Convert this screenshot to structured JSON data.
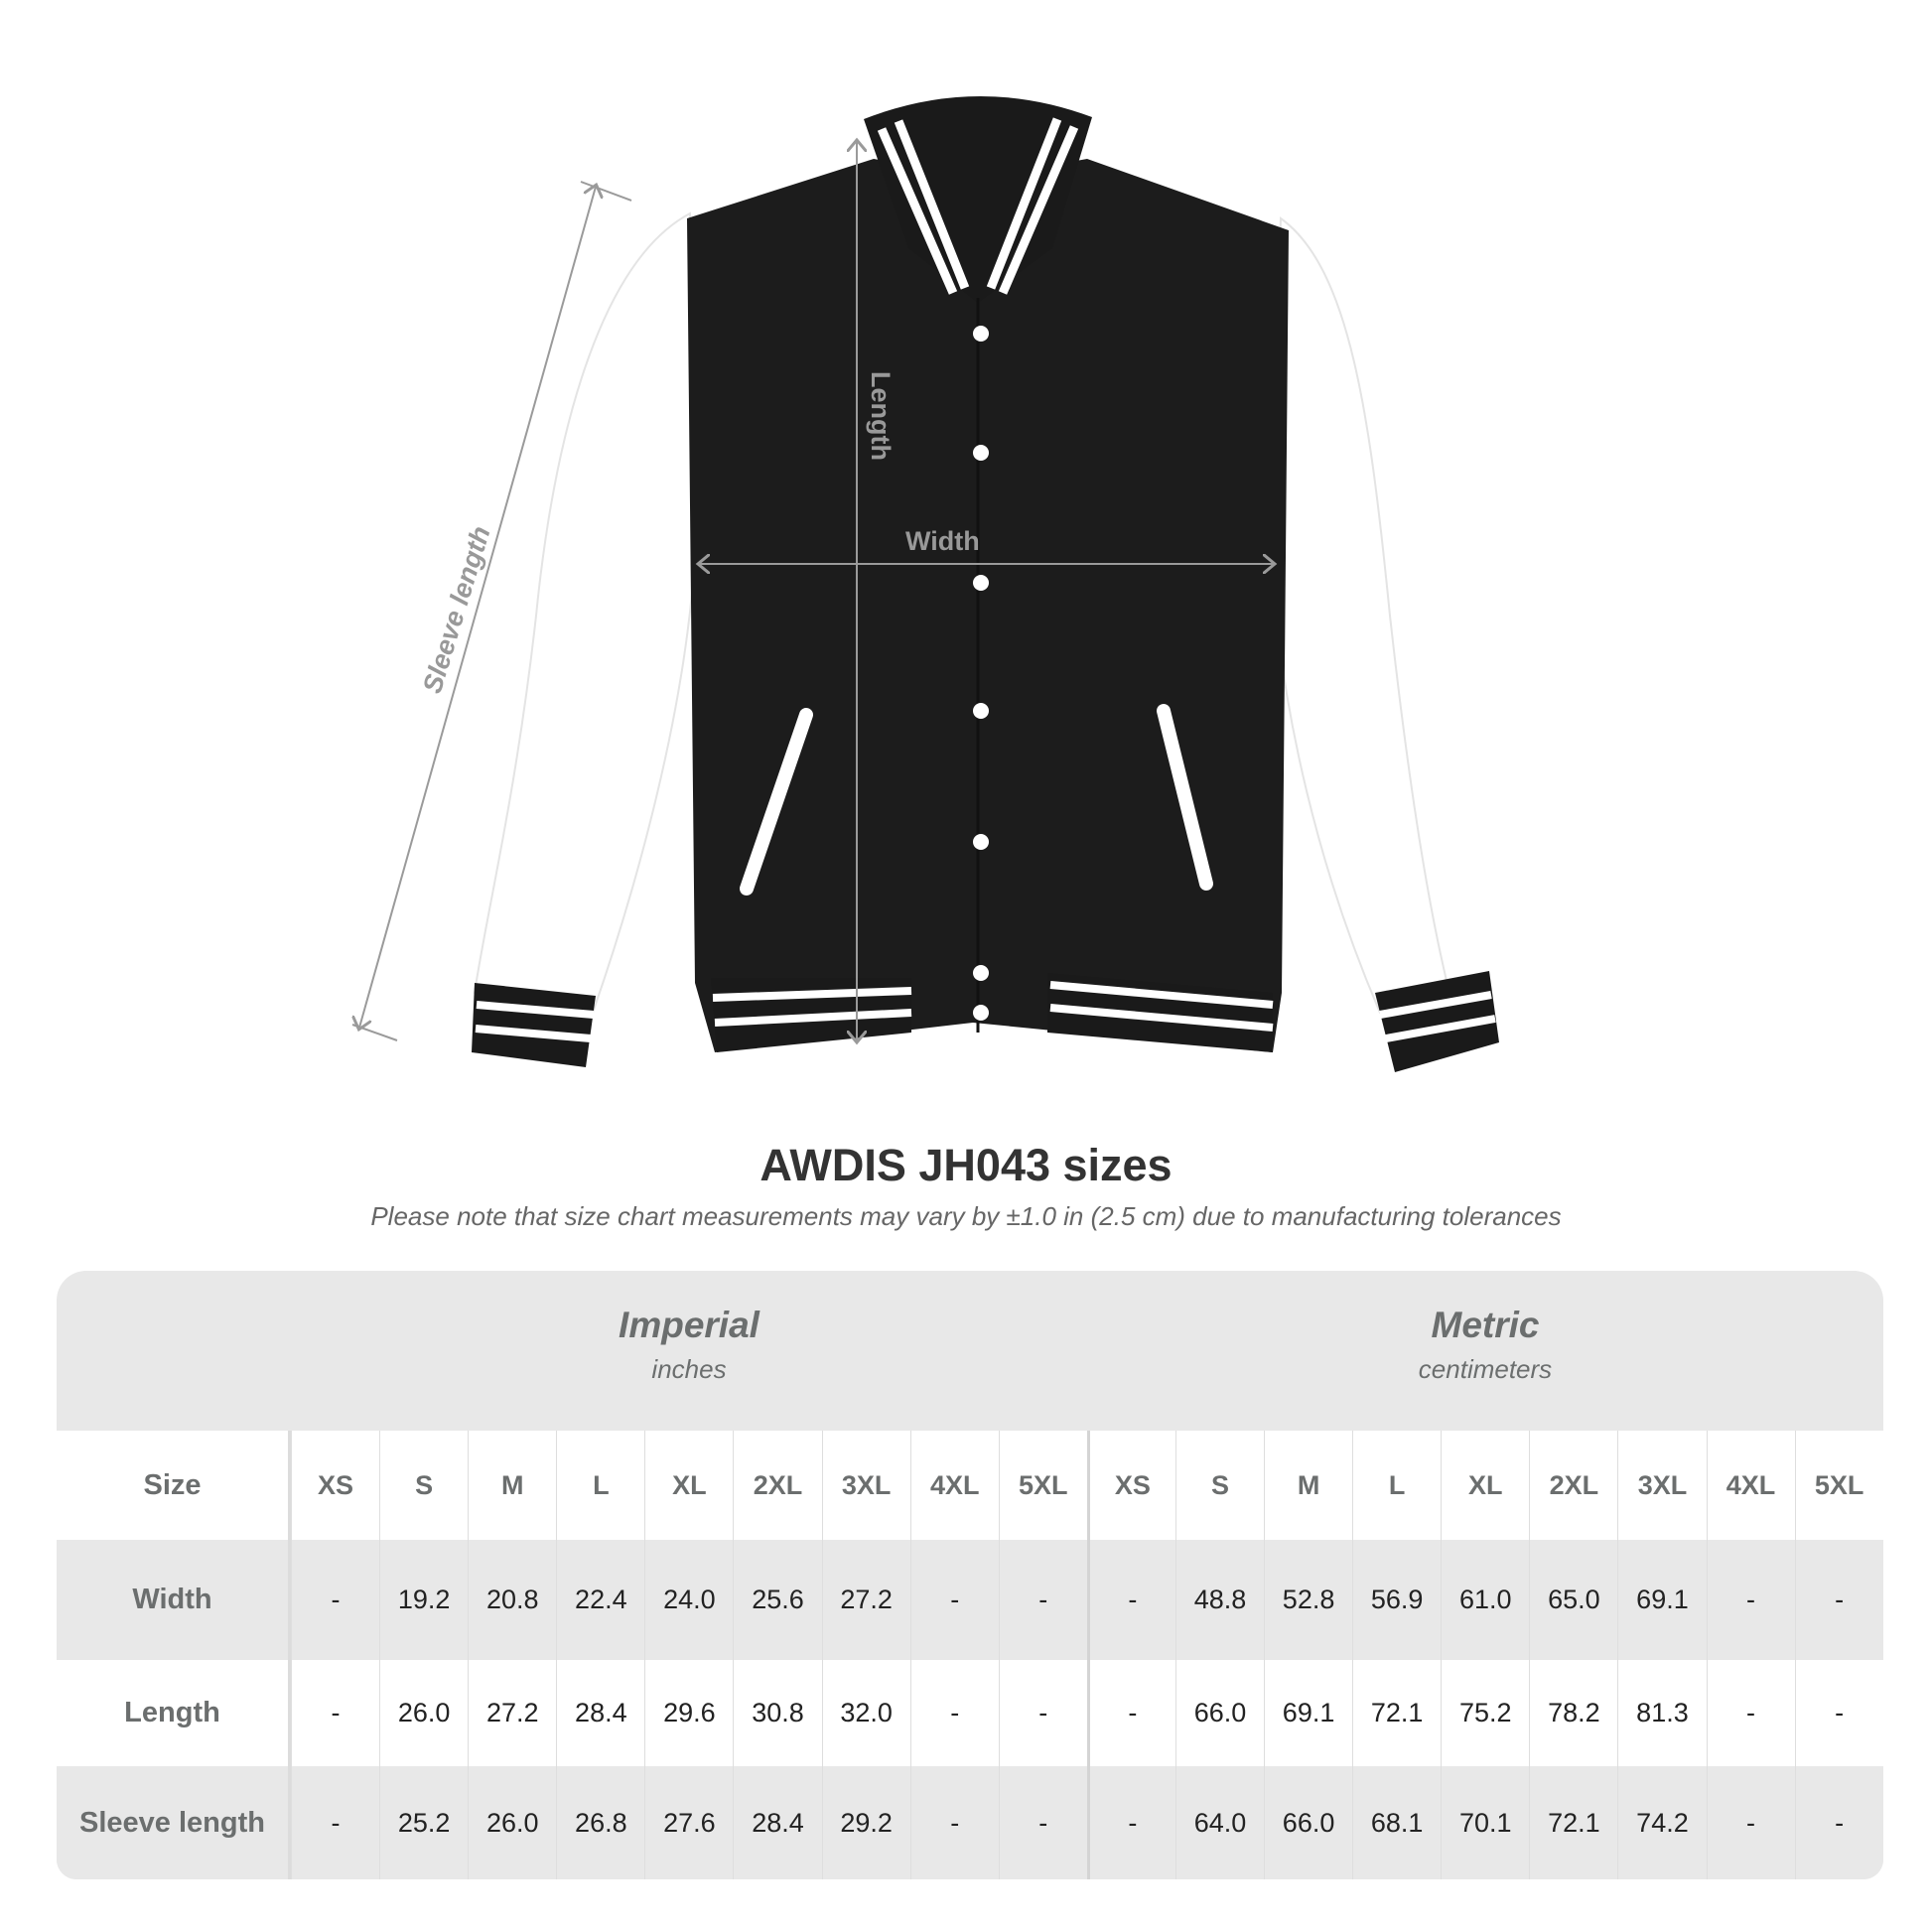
{
  "diagram": {
    "labels": {
      "length": "Length",
      "width": "Width",
      "sleeve": "Sleeve length"
    },
    "colors": {
      "body": "#1c1c1c",
      "sleeves": "#ffffff",
      "stripes": "#ffffff",
      "measure_line": "#9a9a9a"
    }
  },
  "title": "AWDIS JH043 sizes",
  "subtitle": "Please note that size chart measurements may vary by ±1.0 in (2.5 cm) due to manufacturing tolerances",
  "table": {
    "imperial": {
      "title": "Imperial",
      "unit": "inches"
    },
    "metric": {
      "title": "Metric",
      "unit": "centimeters"
    },
    "size_label": "Size",
    "sizes": [
      "XS",
      "S",
      "M",
      "L",
      "XL",
      "2XL",
      "3XL",
      "4XL",
      "5XL"
    ],
    "rows": [
      {
        "label": "Width",
        "imperial": [
          "-",
          "19.2",
          "20.8",
          "22.4",
          "24.0",
          "25.6",
          "27.2",
          "-",
          "-"
        ],
        "metric": [
          "-",
          "48.8",
          "52.8",
          "56.9",
          "61.0",
          "65.0",
          "69.1",
          "-",
          "-"
        ]
      },
      {
        "label": "Length",
        "imperial": [
          "-",
          "26.0",
          "27.2",
          "28.4",
          "29.6",
          "30.8",
          "32.0",
          "-",
          "-"
        ],
        "metric": [
          "-",
          "66.0",
          "69.1",
          "72.1",
          "75.2",
          "78.2",
          "81.3",
          "-",
          "-"
        ]
      },
      {
        "label": "Sleeve length",
        "imperial": [
          "-",
          "25.2",
          "26.0",
          "26.8",
          "27.6",
          "28.4",
          "29.2",
          "-",
          "-"
        ],
        "metric": [
          "-",
          "64.0",
          "66.0",
          "68.1",
          "70.1",
          "72.1",
          "74.2",
          "-",
          "-"
        ]
      }
    ]
  }
}
